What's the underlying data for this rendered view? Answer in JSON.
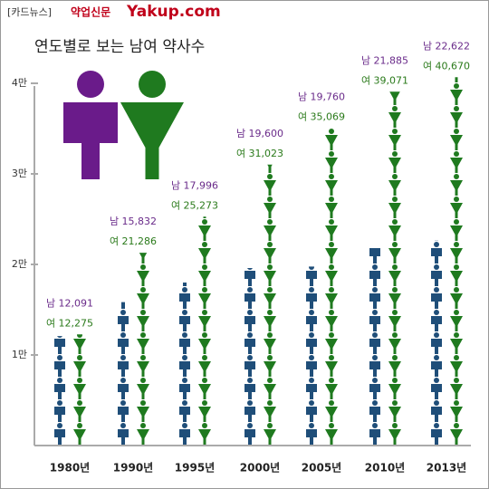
{
  "header": {
    "tag": "[카드뉴스]",
    "brand": "약업신문",
    "site": "Yakup.com"
  },
  "chart_data": {
    "type": "pictogram",
    "title": "연도별로 보는 남여 약사수",
    "categories": [
      "1980년",
      "1990년",
      "1995년",
      "2000년",
      "2005년",
      "2010년",
      "2013년"
    ],
    "series": [
      {
        "color": "#1f4e79",
        "label_color": "#6a2b8a",
        "values": [
          12091,
          15832,
          17996,
          19600,
          19760,
          21885,
          22622
        ],
        "value_labels": [
          "남 12,091",
          "남 15,832",
          "남 17,996",
          "남 19,600",
          "남 19,760",
          "남 21,885",
          "남 22,622"
        ]
      },
      {
        "color": "#1f7a1f",
        "label_color": "#2a7a1a",
        "values": [
          12275,
          21286,
          25273,
          31023,
          35069,
          39071,
          40670
        ],
        "value_labels": [
          "여 12,275",
          "여 21,286",
          "여 25,273",
          "여 31,023",
          "여 35,069",
          "여 39,071",
          "여 40,670"
        ]
      }
    ],
    "ylim": [
      0,
      40000
    ],
    "yticks": [
      {
        "value": 10000,
        "label": "1만"
      },
      {
        "value": 20000,
        "label": "2만"
      },
      {
        "value": 30000,
        "label": "3만"
      },
      {
        "value": 40000,
        "label": "4만"
      }
    ]
  }
}
